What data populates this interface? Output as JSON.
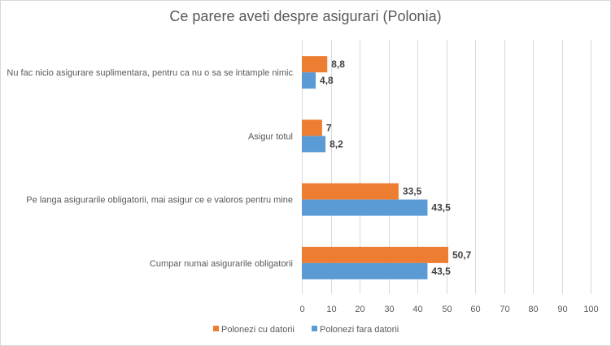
{
  "chart_data": {
    "type": "bar",
    "orientation": "horizontal",
    "title": "Ce parere aveti despre asigurari (Polonia)",
    "categories": [
      "Nu fac nicio asigurare suplimentara, pentru ca nu o sa se intample nimic",
      "Asigur totul",
      "Pe langa asigurarile obligatorii, mai asigur ce e valoros pentru mine",
      "Cumpar numai asigurarile obligatorii"
    ],
    "series": [
      {
        "name": "Polonezi cu datorii",
        "color": "#ED7D31",
        "values": [
          8.8,
          7,
          33.5,
          50.7
        ],
        "labels": [
          "8,8",
          "7",
          "33,5",
          "50,7"
        ]
      },
      {
        "name": "Polonezi fara datorii",
        "color": "#5B9BD5",
        "values": [
          4.8,
          8.2,
          43.5,
          43.5
        ],
        "labels": [
          "4,8",
          "8,2",
          "43,5",
          "43,5"
        ]
      }
    ],
    "xlim": [
      0,
      100
    ],
    "xticks": [
      "0",
      "10",
      "20",
      "30",
      "40",
      "50",
      "60",
      "70",
      "80",
      "90",
      "100"
    ],
    "xlabel": "",
    "ylabel": "",
    "grid": true,
    "legend_position": "bottom"
  }
}
